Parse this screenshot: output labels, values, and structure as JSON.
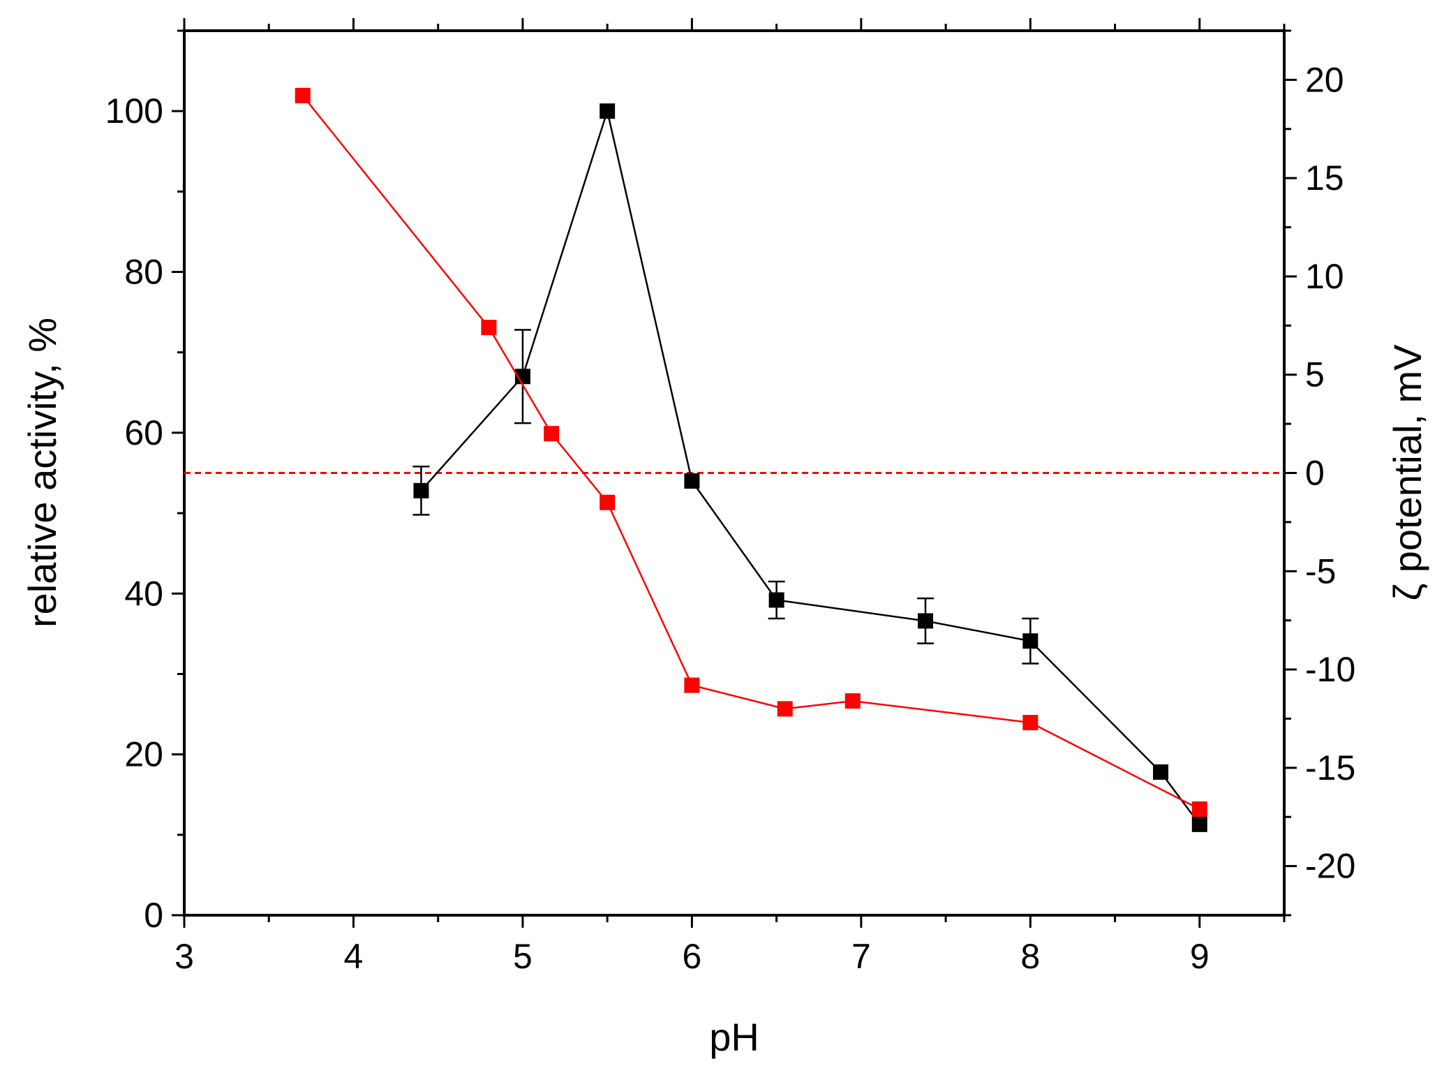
{
  "chart_data": {
    "type": "line",
    "xlabel": "pH",
    "ylabel_left": "relative activity, %",
    "ylabel_right": "ζ potential, mV",
    "xlim": [
      3,
      9.5
    ],
    "ylim_left": [
      0,
      110
    ],
    "ylim_right": [
      -22.5,
      22.5
    ],
    "x_ticks": [
      "3",
      "4",
      "5",
      "6",
      "7",
      "8",
      "9"
    ],
    "y_left_ticks": [
      "0",
      "20",
      "40",
      "60",
      "80",
      "100"
    ],
    "y_right_ticks": [
      "-20",
      "-15",
      "-10",
      "-5",
      "0",
      "5",
      "10",
      "15",
      "20"
    ],
    "series": [
      {
        "axis": "left",
        "color": "#000000",
        "marker": "square",
        "x": [
          4.4,
          5.0,
          5.5,
          6.0,
          6.5,
          7.38,
          8.0,
          8.77,
          9.0
        ],
        "y": [
          52.8,
          67.0,
          100.0,
          54.0,
          39.2,
          36.6,
          34.1,
          17.8,
          11.3
        ],
        "err": [
          3.0,
          5.8,
          0,
          0,
          2.3,
          2.8,
          2.8,
          0,
          0
        ]
      },
      {
        "axis": "right",
        "color": "#ff0000",
        "marker": "square",
        "x": [
          3.7,
          4.8,
          5.17,
          5.5,
          6.0,
          6.55,
          6.95,
          8.0,
          9.0
        ],
        "y": [
          19.2,
          7.4,
          2.0,
          -1.5,
          -10.8,
          -12.0,
          -11.6,
          -12.7,
          -17.1
        ]
      }
    ],
    "reference_lines": [
      {
        "axis": "right",
        "y": 0,
        "color": "#ff0000",
        "style": "dashed"
      }
    ],
    "grid": false,
    "legend": "none"
  }
}
